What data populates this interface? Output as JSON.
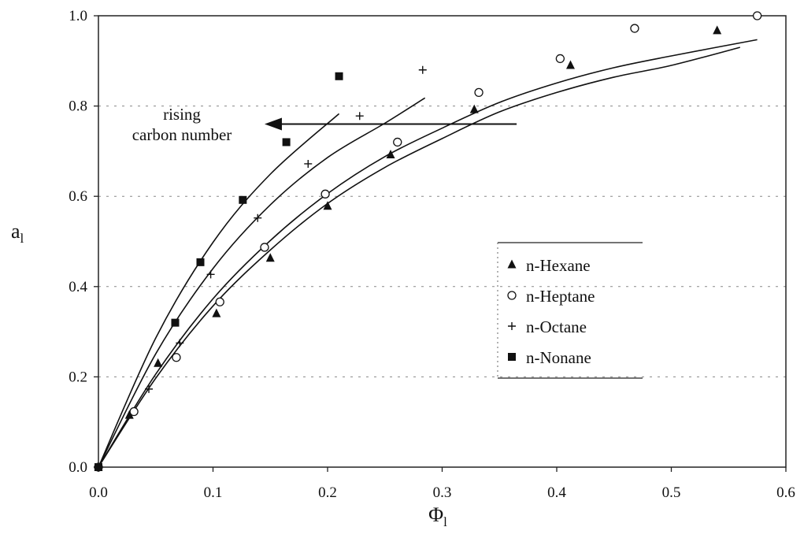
{
  "chart_data": {
    "type": "scatter",
    "xlabel_main": "Φ",
    "xlabel_sub": "l",
    "ylabel_main": "a",
    "ylabel_sub": "l",
    "xlim": [
      0,
      0.6
    ],
    "ylim": [
      0,
      1.0
    ],
    "x_ticks": [
      "0.0",
      "0.1",
      "0.2",
      "0.3",
      "0.4",
      "0.5",
      "0.6"
    ],
    "y_ticks": [
      "0.0",
      "0.2",
      "0.4",
      "0.6",
      "0.8",
      "1.0"
    ],
    "grid": "dashed horizontal",
    "legend_position": "right-center",
    "annotation": {
      "line1": "rising",
      "line2": "carbon number",
      "arrow_from": [
        0.365,
        0.76
      ],
      "arrow_to": [
        0.145,
        0.76
      ]
    },
    "series": [
      {
        "name": "n-Hexane",
        "marker": "triangle",
        "points": [
          [
            0,
            0
          ],
          [
            0.027,
            0.115
          ],
          [
            0.052,
            0.23
          ],
          [
            0.103,
            0.34
          ],
          [
            0.15,
            0.463
          ],
          [
            0.2,
            0.578
          ],
          [
            0.255,
            0.692
          ],
          [
            0.328,
            0.792
          ],
          [
            0.412,
            0.89
          ],
          [
            0.54,
            0.967
          ]
        ],
        "fit": [
          [
            0,
            0
          ],
          [
            0.05,
            0.197
          ],
          [
            0.1,
            0.357
          ],
          [
            0.15,
            0.481
          ],
          [
            0.2,
            0.584
          ],
          [
            0.25,
            0.664
          ],
          [
            0.3,
            0.728
          ],
          [
            0.35,
            0.787
          ],
          [
            0.4,
            0.83
          ],
          [
            0.45,
            0.864
          ],
          [
            0.5,
            0.89
          ],
          [
            0.56,
            0.93
          ]
        ]
      },
      {
        "name": "n-Heptane",
        "marker": "circle",
        "points": [
          [
            0,
            0
          ],
          [
            0.031,
            0.123
          ],
          [
            0.068,
            0.243
          ],
          [
            0.106,
            0.366
          ],
          [
            0.145,
            0.487
          ],
          [
            0.198,
            0.605
          ],
          [
            0.261,
            0.72
          ],
          [
            0.332,
            0.83
          ],
          [
            0.403,
            0.905
          ],
          [
            0.468,
            0.972
          ],
          [
            0.575,
            1.0
          ]
        ],
        "fit": [
          [
            0,
            0
          ],
          [
            0.05,
            0.206
          ],
          [
            0.1,
            0.373
          ],
          [
            0.15,
            0.502
          ],
          [
            0.2,
            0.606
          ],
          [
            0.25,
            0.688
          ],
          [
            0.3,
            0.751
          ],
          [
            0.35,
            0.808
          ],
          [
            0.4,
            0.851
          ],
          [
            0.45,
            0.885
          ],
          [
            0.5,
            0.911
          ],
          [
            0.575,
            0.947
          ]
        ]
      },
      {
        "name": "n-Octane",
        "marker": "plus",
        "points": [
          [
            0,
            0
          ],
          [
            0.044,
            0.173
          ],
          [
            0.071,
            0.275
          ],
          [
            0.098,
            0.427
          ],
          [
            0.139,
            0.552
          ],
          [
            0.183,
            0.672
          ],
          [
            0.228,
            0.778
          ],
          [
            0.283,
            0.88
          ]
        ],
        "fit": [
          [
            0,
            0
          ],
          [
            0.05,
            0.251
          ],
          [
            0.1,
            0.44
          ],
          [
            0.15,
            0.581
          ],
          [
            0.2,
            0.686
          ],
          [
            0.25,
            0.762
          ],
          [
            0.285,
            0.818
          ]
        ]
      },
      {
        "name": "n-Nonane",
        "marker": "square",
        "points": [
          [
            0,
            0
          ],
          [
            0.067,
            0.32
          ],
          [
            0.089,
            0.454
          ],
          [
            0.126,
            0.592
          ],
          [
            0.164,
            0.72
          ],
          [
            0.21,
            0.866
          ]
        ],
        "fit": [
          [
            0,
            0
          ],
          [
            0.05,
            0.286
          ],
          [
            0.1,
            0.498
          ],
          [
            0.15,
            0.649
          ],
          [
            0.21,
            0.783
          ]
        ]
      }
    ]
  }
}
